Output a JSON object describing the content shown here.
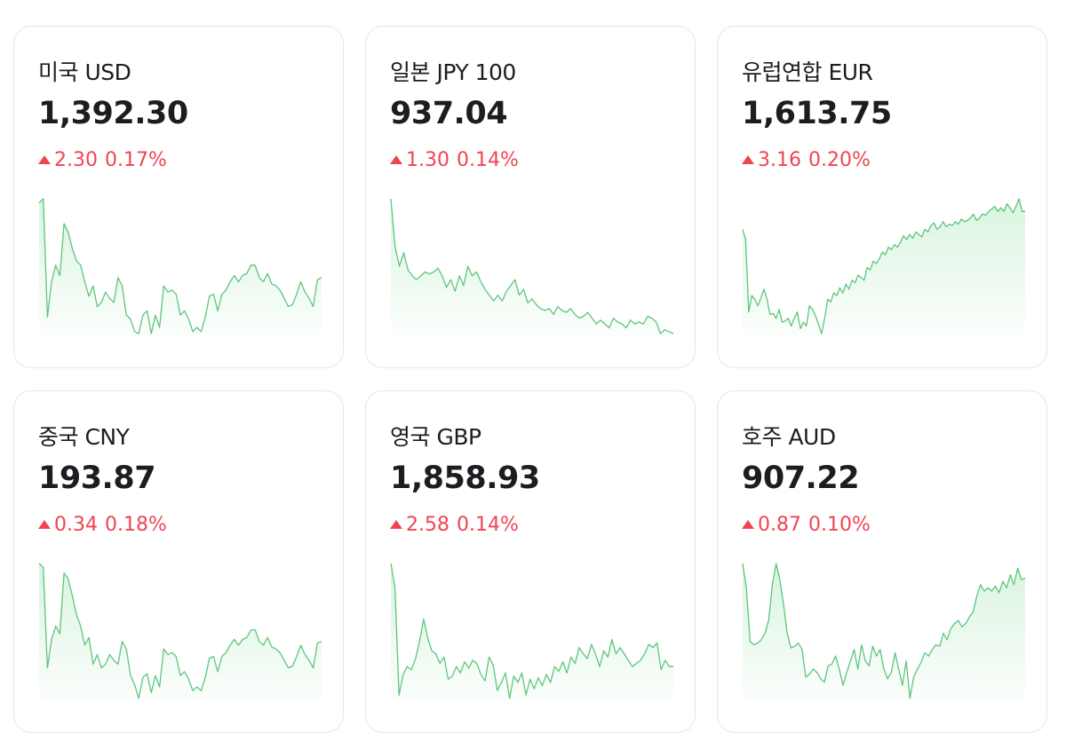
{
  "theme": {
    "up_color": "#f04452",
    "line_color": "#5cc67c",
    "fill_color": "#d7f3de"
  },
  "cards": [
    {
      "name": "미국 USD",
      "rate": "1,392.30",
      "change": "2.30",
      "percent": "0.17%",
      "direction": "up",
      "icon": "up-triangle-icon",
      "spark": [
        90,
        92,
        35,
        52,
        60,
        55,
        80,
        76,
        68,
        62,
        60,
        52,
        45,
        50,
        40,
        42,
        47,
        44,
        42,
        54,
        50,
        36,
        34,
        28,
        27,
        36,
        38,
        27,
        36,
        30,
        50,
        47,
        48,
        46,
        36,
        38,
        34,
        28,
        30,
        28,
        35,
        45,
        46,
        38,
        46,
        48,
        52,
        55,
        52,
        55,
        56,
        60,
        60,
        54,
        52,
        56,
        51,
        50,
        48,
        44,
        40,
        41,
        46,
        52,
        47,
        44,
        40,
        53,
        54
      ]
    },
    {
      "name": "일본 JPY 100",
      "rate": "937.04",
      "change": "1.30",
      "percent": "0.14%",
      "direction": "up",
      "icon": "up-triangle-icon",
      "spark": [
        90,
        65,
        55,
        62,
        53,
        50,
        48,
        50,
        52,
        51,
        52,
        54,
        50,
        44,
        48,
        42,
        50,
        45,
        55,
        50,
        52,
        47,
        43,
        40,
        37,
        40,
        37,
        42,
        45,
        48,
        40,
        43,
        36,
        38,
        35,
        33,
        32,
        33,
        30,
        34,
        32,
        31,
        33,
        30,
        28,
        29,
        31,
        28,
        25,
        27,
        25,
        23,
        28,
        26,
        25,
        23,
        27,
        25,
        26,
        25,
        29,
        28,
        26,
        20,
        22,
        21,
        20
      ]
    },
    {
      "name": "유럽연합 EUR",
      "rate": "1,613.75",
      "change": "3.16",
      "percent": "0.20%",
      "direction": "up",
      "icon": "up-triangle-icon",
      "spark": [
        90,
        82,
        25,
        38,
        35,
        30,
        36,
        43,
        35,
        23,
        24,
        20,
        27,
        17,
        18,
        20,
        14,
        20,
        25,
        12,
        17,
        14,
        30,
        27,
        22,
        15,
        8,
        20,
        35,
        33,
        40,
        38,
        44,
        40,
        47,
        43,
        50,
        48,
        54,
        52,
        50,
        60,
        58,
        65,
        63,
        67,
        72,
        70,
        76,
        74,
        78,
        76,
        80,
        85,
        82,
        86,
        83,
        88,
        86,
        84,
        90,
        88,
        93,
        95,
        90,
        92,
        96,
        92,
        94,
        93,
        96,
        94,
        98,
        96,
        97,
        99,
        102,
        97,
        99,
        102,
        101,
        104,
        106,
        108,
        104,
        107,
        104,
        110,
        107,
        103,
        108,
        114,
        104,
        104
      ]
    },
    {
      "name": "중국 CNY",
      "rate": "193.87",
      "change": "0.34",
      "percent": "0.18%",
      "direction": "up",
      "icon": "up-triangle-icon",
      "spark": [
        95,
        93,
        40,
        55,
        62,
        58,
        90,
        87,
        78,
        68,
        62,
        52,
        56,
        42,
        47,
        40,
        42,
        47,
        44,
        42,
        54,
        50,
        36,
        31,
        24,
        35,
        37,
        27,
        36,
        30,
        50,
        47,
        48,
        46,
        36,
        38,
        34,
        28,
        30,
        28,
        35,
        45,
        46,
        38,
        46,
        48,
        52,
        55,
        52,
        55,
        56,
        60,
        60,
        54,
        52,
        56,
        51,
        50,
        48,
        44,
        40,
        41,
        46,
        52,
        47,
        44,
        40,
        53,
        54
      ]
    },
    {
      "name": "영국 GBP",
      "rate": "1,858.93",
      "change": "2.58",
      "percent": "0.14%",
      "direction": "up",
      "icon": "up-triangle-icon",
      "spark": [
        95,
        80,
        12,
        25,
        30,
        28,
        35,
        46,
        60,
        48,
        40,
        38,
        32,
        36,
        22,
        24,
        30,
        26,
        33,
        29,
        34,
        32,
        25,
        21,
        36,
        31,
        15,
        20,
        26,
        10,
        24,
        20,
        26,
        12,
        22,
        16,
        23,
        18,
        25,
        20,
        30,
        27,
        33,
        26,
        36,
        32,
        42,
        38,
        35,
        44,
        38,
        30,
        40,
        36,
        47,
        38,
        42,
        38,
        34,
        30,
        32,
        34,
        38,
        44,
        42,
        45,
        28,
        34,
        30,
        30
      ]
    },
    {
      "name": "호주 AUD",
      "rate": "907.22",
      "change": "0.87",
      "percent": "0.10%",
      "direction": "up",
      "icon": "up-triangle-icon",
      "spark": [
        95,
        80,
        47,
        45,
        46,
        48,
        52,
        60,
        82,
        95,
        85,
        70,
        52,
        43,
        44,
        46,
        42,
        25,
        27,
        30,
        28,
        24,
        22,
        32,
        33,
        38,
        30,
        20,
        28,
        35,
        42,
        30,
        45,
        35,
        32,
        44,
        38,
        42,
        30,
        24,
        28,
        40,
        30,
        20,
        35,
        12,
        25,
        30,
        34,
        40,
        38,
        42,
        45,
        44,
        52,
        48,
        55,
        58,
        60,
        56,
        58,
        62,
        65,
        75,
        82,
        78,
        80,
        78,
        81,
        77,
        84,
        80,
        88,
        82,
        92,
        85,
        86
      ]
    }
  ]
}
